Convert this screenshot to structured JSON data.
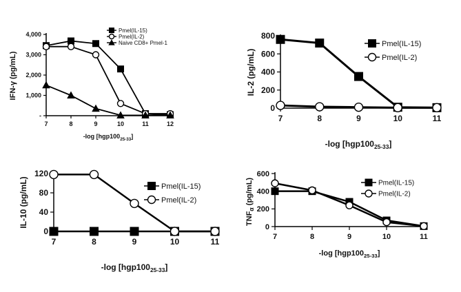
{
  "chart_data": [
    {
      "type": "line",
      "ylabel": "IFN-γ (pg/mL)",
      "xlabel_main": "-log [hgp100",
      "xlabel_sub": "25-33",
      "xlabel_close": "]",
      "x": [
        7,
        8,
        9,
        10,
        11,
        12
      ],
      "xlim": [
        7,
        12
      ],
      "ylim": [
        0,
        4000
      ],
      "yticks": [
        {
          "value": 4000,
          "label": "4,000"
        },
        {
          "value": 3000,
          "label": "3,000"
        },
        {
          "value": 2000,
          "label": "2,000"
        },
        {
          "value": 1000,
          "label": "1,000"
        },
        {
          "value": 0,
          "label": "-"
        }
      ],
      "legend_position": "top-right",
      "series": [
        {
          "name": "Pmel(IL-15)",
          "marker": "square-filled",
          "values": [
            3450,
            3680,
            3550,
            2300,
            100,
            50
          ]
        },
        {
          "name": "Pmel(IL-2)",
          "marker": "circle-open",
          "values": [
            3400,
            3400,
            3000,
            600,
            100,
            100
          ]
        },
        {
          "name": "Naive CD8+ Pmel-1",
          "marker": "triangle-filled",
          "values": [
            1500,
            1000,
            350,
            20,
            20,
            20
          ]
        }
      ]
    },
    {
      "type": "line",
      "ylabel": "IL-2 (pg/mL)",
      "xlabel_main": "-log [hgp100",
      "xlabel_sub": "25-33",
      "xlabel_close": "]",
      "x": [
        7,
        8,
        9,
        10,
        11
      ],
      "xlim": [
        7,
        11
      ],
      "ylim": [
        0,
        800
      ],
      "yticks": [
        {
          "value": 800,
          "label": "800"
        },
        {
          "value": 600,
          "label": "600"
        },
        {
          "value": 400,
          "label": "400"
        },
        {
          "value": 200,
          "label": "200"
        },
        {
          "value": 0,
          "label": "0"
        }
      ],
      "legend_position": "top-right",
      "series": [
        {
          "name": "Pmel(IL-15)",
          "marker": "square-filled",
          "values": [
            760,
            720,
            350,
            10,
            5
          ]
        },
        {
          "name": "Pmel(IL-2)",
          "marker": "circle-open",
          "values": [
            30,
            15,
            10,
            5,
            5
          ]
        }
      ]
    },
    {
      "type": "line",
      "ylabel": "IL-10 (pg/mL)",
      "xlabel_main": "-log [hgp100",
      "xlabel_sub": "25-33",
      "xlabel_close": "]",
      "x": [
        7,
        8,
        9,
        10,
        11
      ],
      "xlim": [
        7,
        11
      ],
      "ylim": [
        0,
        120
      ],
      "yticks": [
        {
          "value": 120,
          "label": "120"
        },
        {
          "value": 80,
          "label": "80"
        },
        {
          "value": 40,
          "label": "40"
        },
        {
          "value": 0,
          "label": "0"
        }
      ],
      "legend_position": "right",
      "series": [
        {
          "name": "Pmel(IL-15)",
          "marker": "square-filled",
          "values": [
            0,
            0,
            0,
            0,
            0
          ]
        },
        {
          "name": "Pmel(IL-2)",
          "marker": "circle-open",
          "values": [
            118,
            118,
            58,
            0,
            0
          ]
        }
      ]
    },
    {
      "type": "line",
      "ylabel_main": "TNF",
      "ylabel_sub": "α",
      "ylabel_rest": " (pg/mL)",
      "xlabel_main": "-log [hgp100",
      "xlabel_sub": "25-33",
      "xlabel_close": "]",
      "x": [
        7,
        8,
        9,
        10,
        11
      ],
      "xlim": [
        7,
        11
      ],
      "ylim": [
        0,
        600
      ],
      "yticks": [
        {
          "value": 600,
          "label": "600"
        },
        {
          "value": 400,
          "label": "400"
        },
        {
          "value": 200,
          "label": "200"
        },
        {
          "value": 0,
          "label": "0"
        }
      ],
      "legend_position": "top-right",
      "series": [
        {
          "name": "Pmel(IL-15)",
          "marker": "square-filled",
          "values": [
            400,
            400,
            280,
            70,
            5
          ]
        },
        {
          "name": "Pmel(IL-2)",
          "marker": "circle-open",
          "values": [
            490,
            410,
            240,
            50,
            5
          ]
        }
      ]
    }
  ]
}
